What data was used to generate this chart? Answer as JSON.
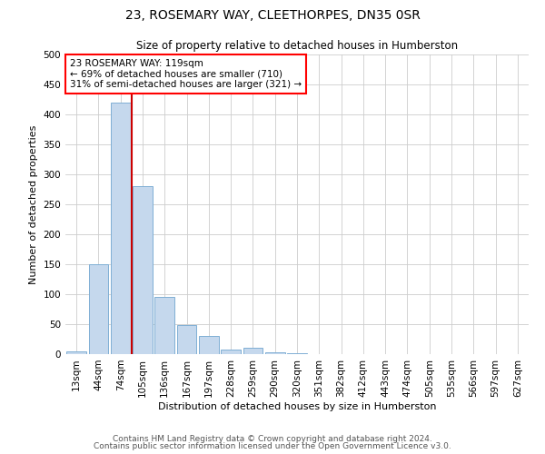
{
  "title1": "23, ROSEMARY WAY, CLEETHORPES, DN35 0SR",
  "title2": "Size of property relative to detached houses in Humberston",
  "xlabel": "Distribution of detached houses by size in Humberston",
  "ylabel": "Number of detached properties",
  "footnote1": "Contains HM Land Registry data © Crown copyright and database right 2024.",
  "footnote2": "Contains public sector information licensed under the Open Government Licence v3.0.",
  "annotation_line1": "23 ROSEMARY WAY: 119sqm",
  "annotation_line2": "← 69% of detached houses are smaller (710)",
  "annotation_line3": "31% of semi-detached houses are larger (321) →",
  "bar_color": "#c5d8ed",
  "bar_edge_color": "#7fafd4",
  "vline_color": "#cc0000",
  "vline_x": 2.5,
  "categories": [
    "13sqm",
    "44sqm",
    "74sqm",
    "105sqm",
    "136sqm",
    "167sqm",
    "197sqm",
    "228sqm",
    "259sqm",
    "290sqm",
    "320sqm",
    "351sqm",
    "382sqm",
    "412sqm",
    "443sqm",
    "474sqm",
    "505sqm",
    "535sqm",
    "566sqm",
    "597sqm",
    "627sqm"
  ],
  "values": [
    5,
    150,
    420,
    280,
    95,
    48,
    30,
    8,
    10,
    3,
    1,
    0,
    0,
    0,
    0,
    0,
    0,
    0,
    0,
    0,
    0
  ],
  "ylim": [
    0,
    500
  ],
  "yticks": [
    0,
    50,
    100,
    150,
    200,
    250,
    300,
    350,
    400,
    450,
    500
  ],
  "title1_fontsize": 10,
  "title2_fontsize": 8.5,
  "xlabel_fontsize": 8,
  "ylabel_fontsize": 8,
  "tick_fontsize": 7.5,
  "footnote_fontsize": 6.5
}
